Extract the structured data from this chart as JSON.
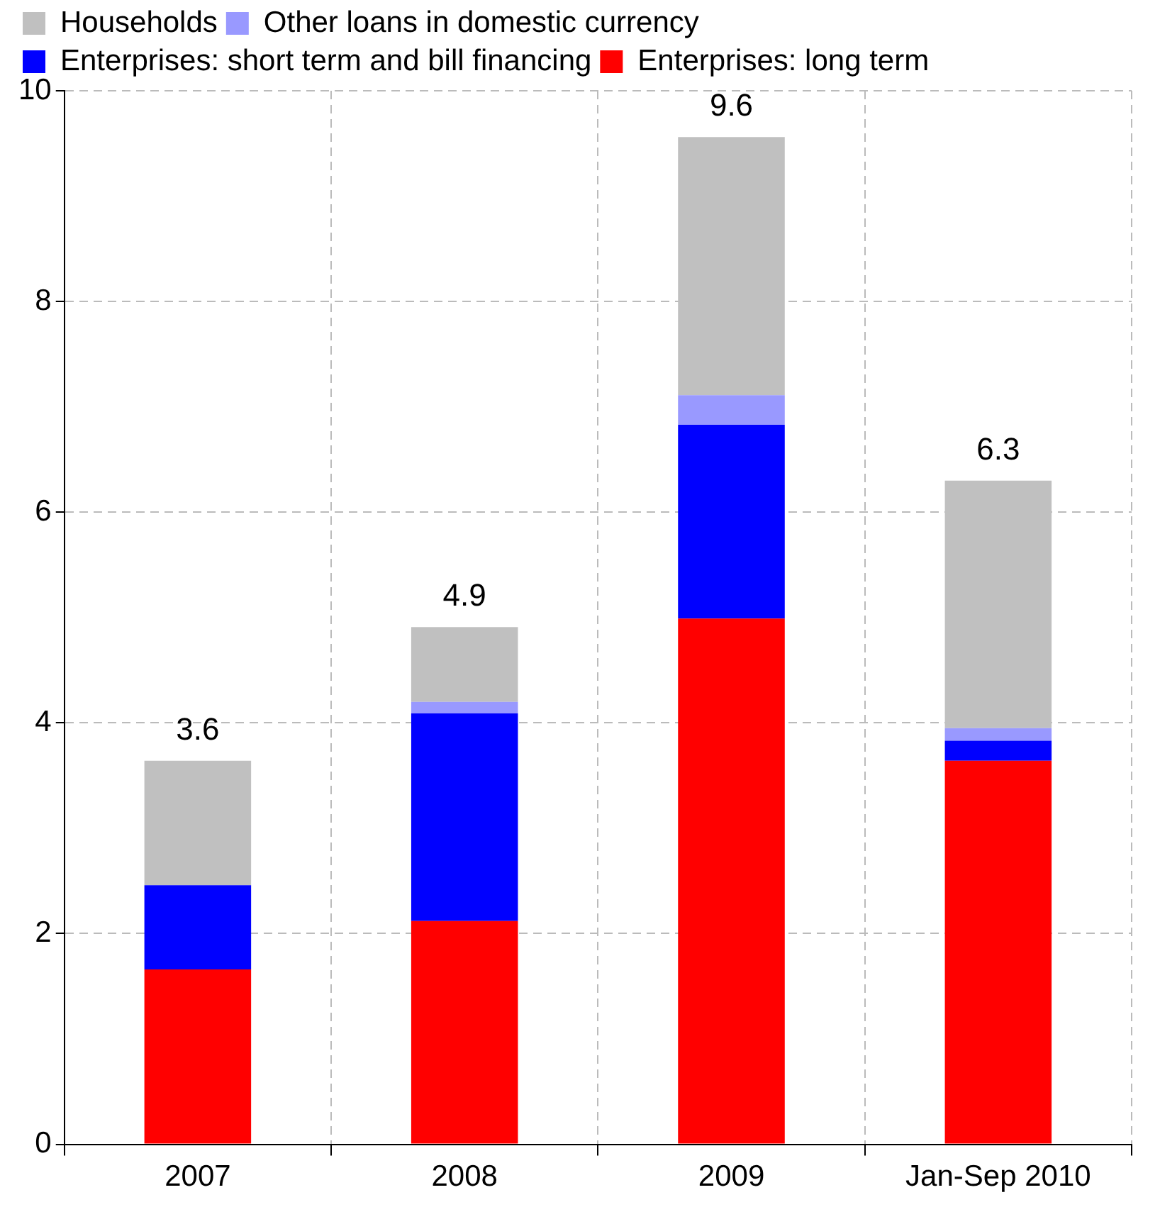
{
  "chart_data": {
    "type": "bar",
    "stacked": true,
    "categories": [
      "2007",
      "2008",
      "2009",
      "Jan-Sep 2010"
    ],
    "series": [
      {
        "name": "Enterprises: long term",
        "color": "#ff0000",
        "values": [
          1.66,
          2.12,
          4.99,
          3.64
        ]
      },
      {
        "name": "Enterprises: short term and bill financing",
        "color": "#0000ff",
        "values": [
          0.8,
          1.97,
          1.84,
          0.19
        ]
      },
      {
        "name": "Other loans in domestic currency",
        "color": "#9999ff",
        "values": [
          0,
          0.11,
          0.28,
          0.12
        ]
      },
      {
        "name": "Households",
        "color": "#c0c0c0",
        "values": [
          1.18,
          0.71,
          2.45,
          2.35
        ]
      }
    ],
    "totals": [
      "3.6",
      "4.9",
      "9.6",
      "6.3"
    ],
    "ylim": [
      0,
      10
    ],
    "yticks": [
      0,
      2,
      4,
      6,
      8,
      10
    ],
    "grid": true,
    "legend": "top left"
  }
}
